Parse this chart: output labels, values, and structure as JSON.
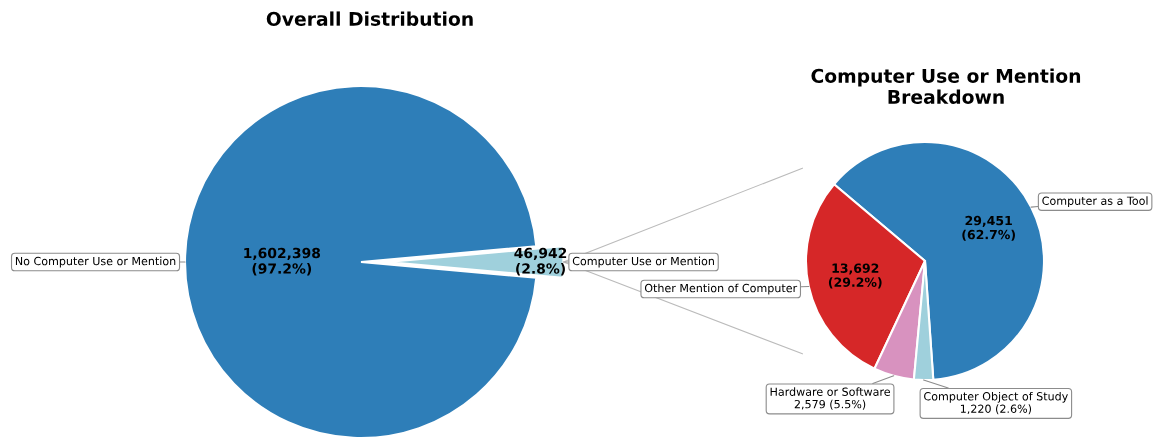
{
  "chart_data": [
    {
      "type": "pie",
      "title": "Overall Distribution",
      "categories": [
        "No Computer Use or Mention",
        "Computer Use or Mention"
      ],
      "values": [
        1602398,
        46942
      ],
      "colors": [
        "#2e7eb8",
        "#9fd0dc"
      ],
      "value_labels": [
        "1,602,398\n(97.2%)",
        "46,942\n(2.8%)"
      ]
    },
    {
      "type": "pie",
      "title": "Computer Use or Mention\nBreakdown",
      "categories": [
        "Computer as a Tool",
        "Other Mention of Computer",
        "Hardware or Software",
        "Computer Object of Study"
      ],
      "values": [
        29451,
        13692,
        2579,
        1220
      ],
      "colors": [
        "#2e7eb8",
        "#d62728",
        "#d892bf",
        "#9fd0dc"
      ],
      "value_labels": [
        "29,451\n(62.7%)",
        "13,692\n(29.2%)",
        "2,579 (5.5%)",
        "1,220 (2.6%)"
      ]
    }
  ]
}
